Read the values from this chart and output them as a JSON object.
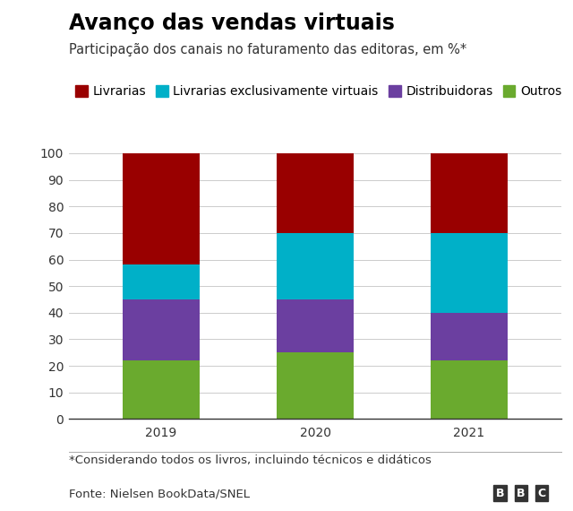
{
  "title": "Avanço das vendas virtuais",
  "subtitle": "Participação dos canais no faturamento das editoras, em %*",
  "footnote": "*Considerando todos os livros, incluindo técnicos e didáticos",
  "source": "Fonte: Nielsen BookData/SNEL",
  "bbc_label": "BBC",
  "categories": [
    "2019",
    "2020",
    "2021"
  ],
  "series": [
    {
      "label": "Outros",
      "color": "#6aaa2e",
      "values": [
        22,
        25,
        22
      ]
    },
    {
      "label": "Distribuidoras",
      "color": "#6b3fa0",
      "values": [
        23,
        20,
        18
      ]
    },
    {
      "label": "Livrarias exclusivamente virtuais",
      "color": "#00b0c8",
      "values": [
        13,
        25,
        30
      ]
    },
    {
      "label": "Livrarias",
      "color": "#990000",
      "values": [
        42,
        30,
        30
      ]
    }
  ],
  "ylim": [
    0,
    100
  ],
  "yticks": [
    0,
    10,
    20,
    30,
    40,
    50,
    60,
    70,
    80,
    90,
    100
  ],
  "bar_width": 0.5,
  "background_color": "#ffffff",
  "title_fontsize": 17,
  "subtitle_fontsize": 10.5,
  "legend_fontsize": 10,
  "tick_fontsize": 10,
  "footnote_fontsize": 9.5,
  "source_fontsize": 9.5
}
